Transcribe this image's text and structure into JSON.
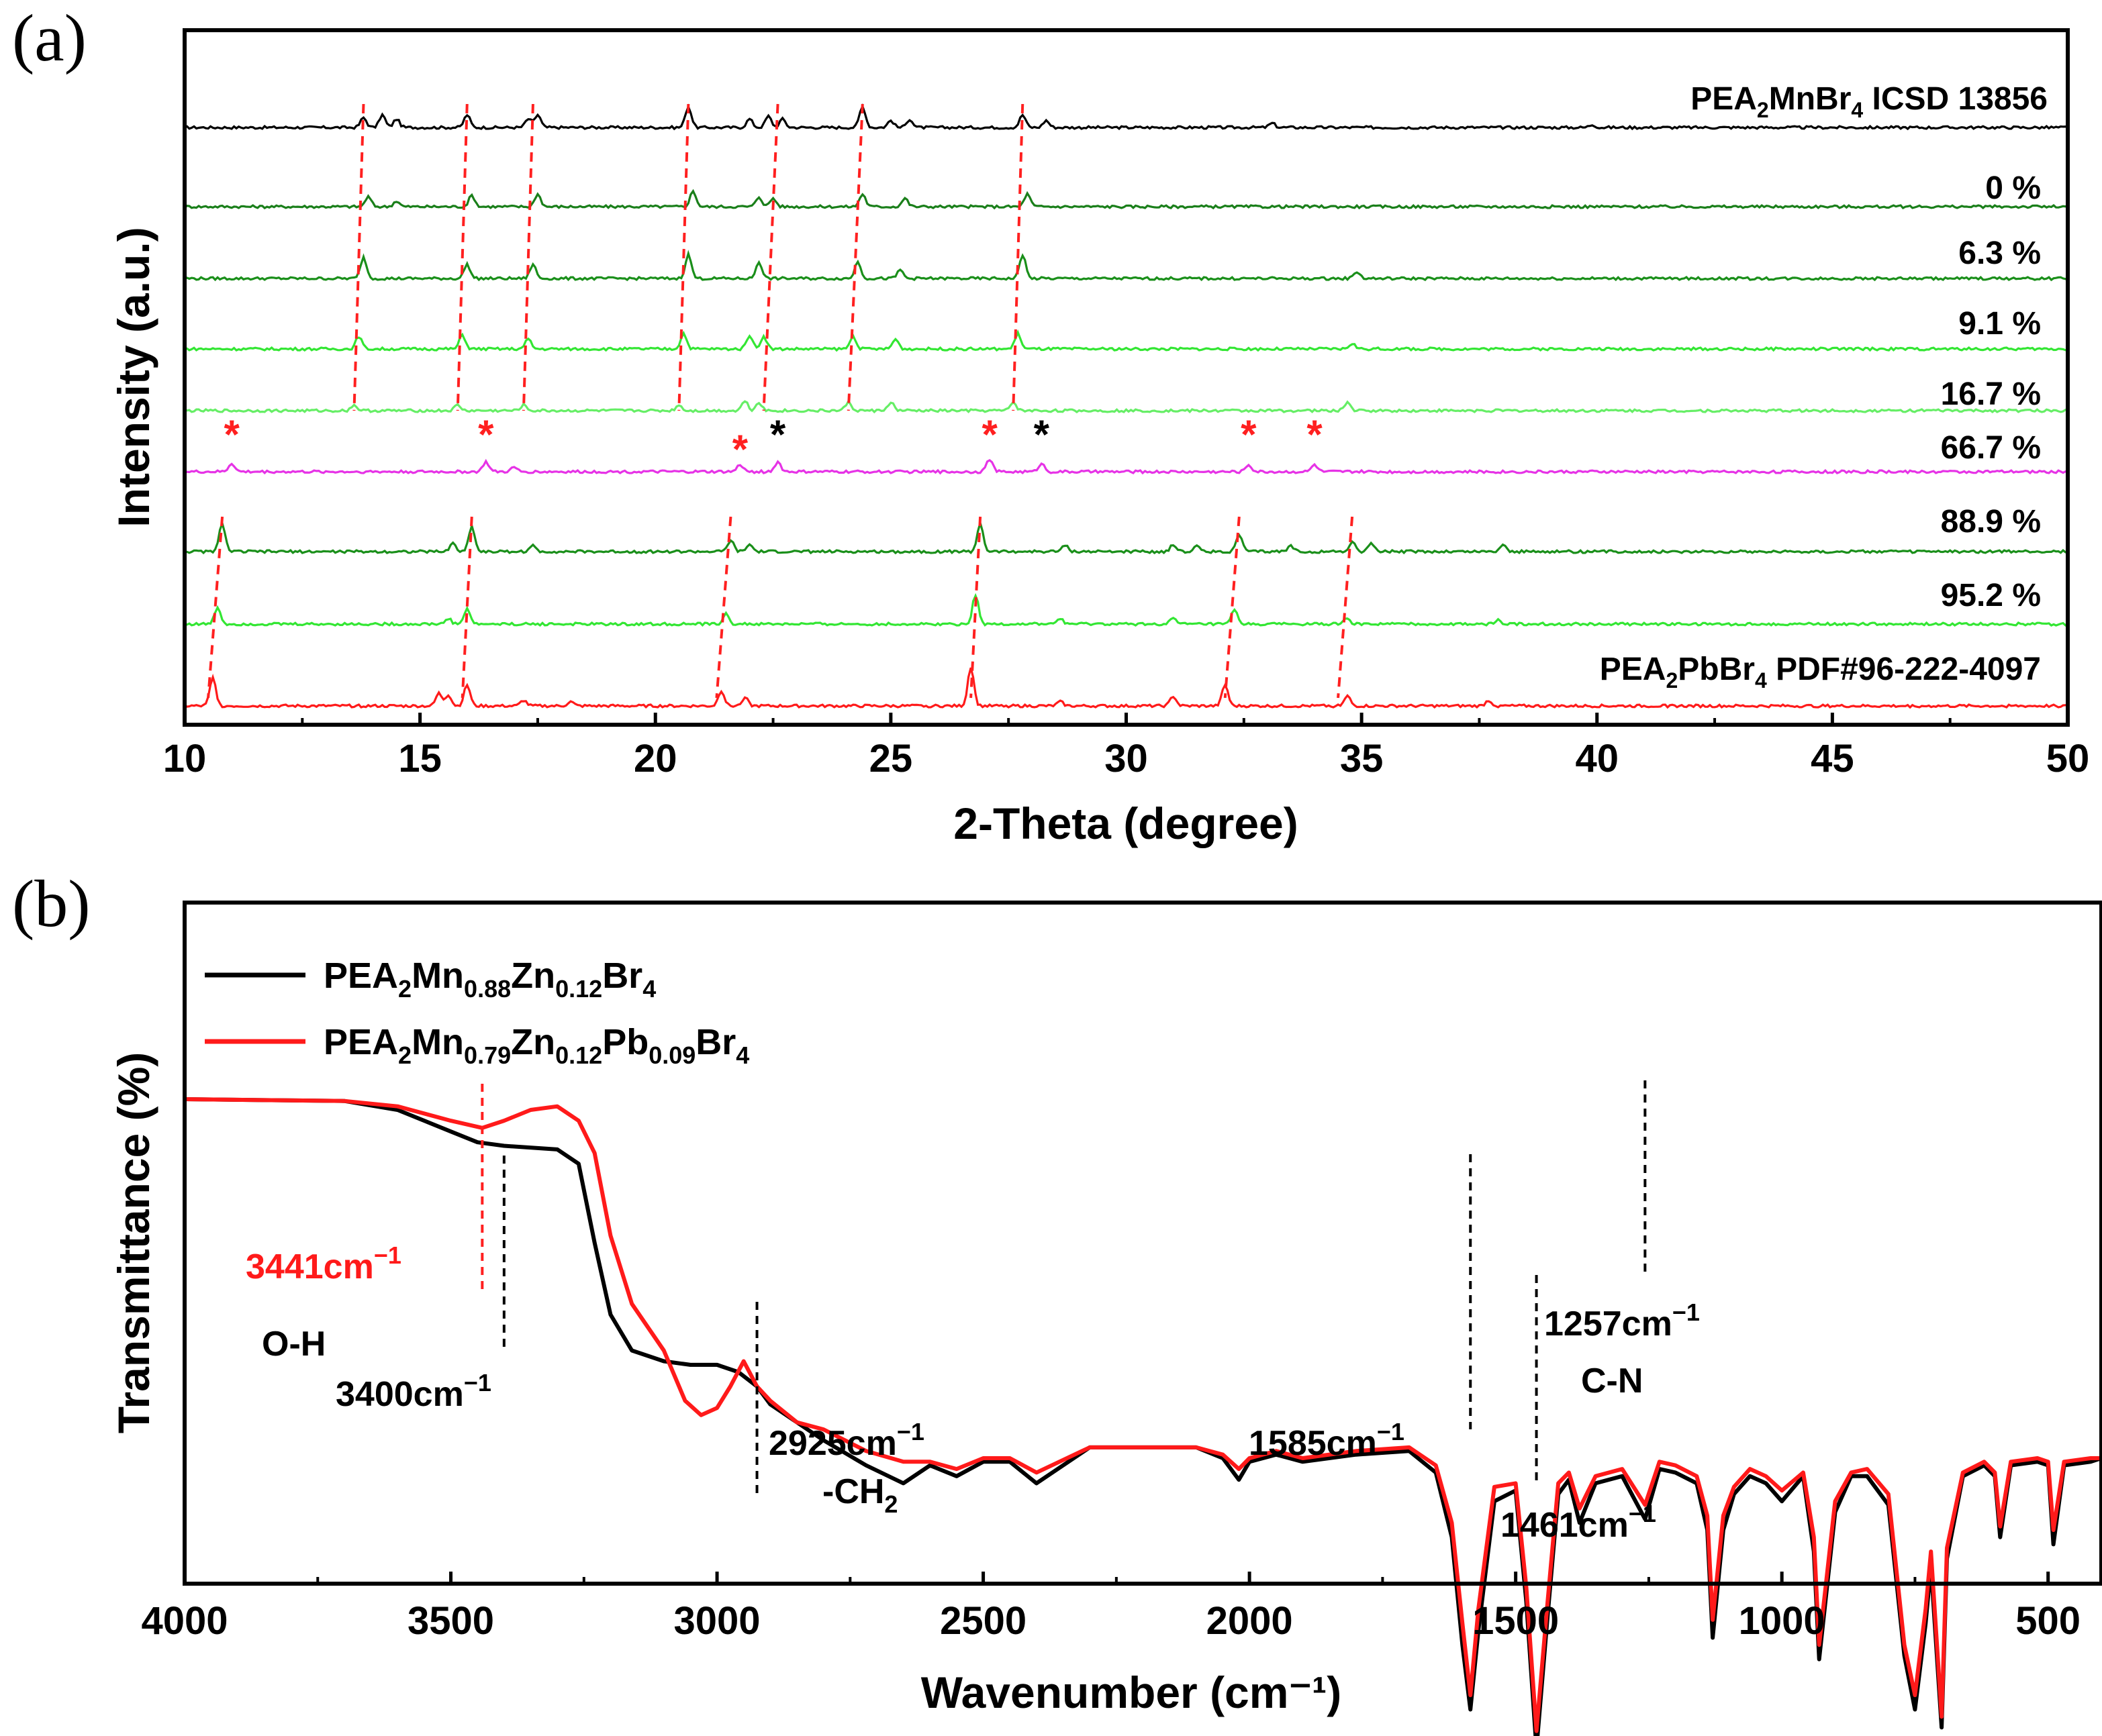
{
  "panels": {
    "a": {
      "label": "(a)"
    },
    "b": {
      "label": "(b)"
    }
  },
  "chart_data": [
    {
      "type": "line",
      "subtype": "xrd-stacked",
      "title": "",
      "xlabel": "2-Theta (degree)",
      "ylabel": "Intensity (a.u.)",
      "xlim": [
        10,
        50
      ],
      "xticks": [
        "10",
        "15",
        "20",
        "25",
        "30",
        "35",
        "40",
        "45",
        "50"
      ],
      "series": [
        {
          "name": "PEA2MnBr4 ICSD 13856",
          "label_main": "PEA",
          "label_sub1": "2",
          "label_mid": "MnBr",
          "label_sub2": "4",
          "label_tail": " ICSD 13856",
          "color": "#000000",
          "peaks": [
            [
              13.8,
              0.35
            ],
            [
              14.2,
              0.45
            ],
            [
              14.5,
              0.3
            ],
            [
              16.0,
              0.45
            ],
            [
              17.3,
              0.3
            ],
            [
              17.5,
              0.45
            ],
            [
              20.7,
              0.75
            ],
            [
              22.0,
              0.3
            ],
            [
              22.4,
              0.4
            ],
            [
              22.7,
              0.3
            ],
            [
              24.4,
              0.75
            ],
            [
              25.0,
              0.25
            ],
            [
              25.4,
              0.3
            ],
            [
              27.8,
              0.45
            ],
            [
              28.3,
              0.25
            ],
            [
              33.1,
              0.15
            ],
            [
              39.9,
              0.1
            ]
          ]
        },
        {
          "name": "0 %",
          "color": "#1a7f1a",
          "peaks": [
            [
              13.9,
              0.35
            ],
            [
              14.5,
              0.2
            ],
            [
              16.1,
              0.4
            ],
            [
              17.5,
              0.45
            ],
            [
              20.8,
              0.55
            ],
            [
              22.2,
              0.35
            ],
            [
              22.5,
              0.3
            ],
            [
              24.4,
              0.45
            ],
            [
              25.3,
              0.3
            ],
            [
              27.9,
              0.45
            ]
          ]
        },
        {
          "name": "6.3 %",
          "color": "#1a8f1a",
          "peaks": [
            [
              13.8,
              0.75
            ],
            [
              16.0,
              0.5
            ],
            [
              17.4,
              0.5
            ],
            [
              20.7,
              0.85
            ],
            [
              22.2,
              0.6
            ],
            [
              24.3,
              0.6
            ],
            [
              25.2,
              0.3
            ],
            [
              27.8,
              0.85
            ],
            [
              34.9,
              0.25
            ]
          ]
        },
        {
          "name": "9.1 %",
          "color": "#33e633",
          "peaks": [
            [
              13.7,
              0.45
            ],
            [
              15.9,
              0.5
            ],
            [
              17.3,
              0.35
            ],
            [
              20.6,
              0.55
            ],
            [
              22.0,
              0.5
            ],
            [
              22.3,
              0.45
            ],
            [
              24.2,
              0.45
            ],
            [
              25.1,
              0.35
            ],
            [
              27.7,
              0.55
            ],
            [
              34.8,
              0.2
            ]
          ]
        },
        {
          "name": "16.7 %",
          "color": "#66ee66",
          "peaks": [
            [
              13.6,
              0.2
            ],
            [
              15.8,
              0.2
            ],
            [
              17.2,
              0.2
            ],
            [
              20.5,
              0.2
            ],
            [
              21.9,
              0.35
            ],
            [
              22.2,
              0.3
            ],
            [
              24.1,
              0.3
            ],
            [
              25.0,
              0.3
            ],
            [
              27.6,
              0.3
            ],
            [
              34.7,
              0.3
            ]
          ]
        },
        {
          "name": "66.7 %",
          "color": "#e633e6",
          "peaks": [
            [
              11.0,
              0.3
            ],
            [
              16.4,
              0.35
            ],
            [
              17.0,
              0.15
            ],
            [
              21.8,
              0.25
            ],
            [
              22.6,
              0.35
            ],
            [
              27.1,
              0.45
            ],
            [
              28.2,
              0.3
            ],
            [
              32.6,
              0.25
            ],
            [
              34.0,
              0.25
            ]
          ]
        },
        {
          "name": "88.9 %",
          "color": "#1a8f1a",
          "peaks": [
            [
              10.8,
              1.0
            ],
            [
              15.7,
              0.3
            ],
            [
              16.1,
              0.9
            ],
            [
              17.4,
              0.2
            ],
            [
              21.6,
              0.4
            ],
            [
              22.0,
              0.25
            ],
            [
              26.9,
              1.0
            ],
            [
              28.7,
              0.25
            ],
            [
              31.0,
              0.25
            ],
            [
              31.5,
              0.2
            ],
            [
              32.4,
              0.6
            ],
            [
              33.5,
              0.2
            ],
            [
              34.8,
              0.35
            ],
            [
              35.2,
              0.3
            ],
            [
              38.0,
              0.25
            ]
          ]
        },
        {
          "name": "95.2 %",
          "color": "#33e633",
          "peaks": [
            [
              10.7,
              0.6
            ],
            [
              15.6,
              0.2
            ],
            [
              16.0,
              0.55
            ],
            [
              21.5,
              0.35
            ],
            [
              26.8,
              1.05
            ],
            [
              28.6,
              0.2
            ],
            [
              31.0,
              0.2
            ],
            [
              32.3,
              0.5
            ],
            [
              34.7,
              0.2
            ],
            [
              37.9,
              0.15
            ]
          ]
        },
        {
          "name": "PEA2PbBr4 PDF#96-222-4097",
          "label_main": "PEA",
          "label_sub1": "2",
          "label_mid": "PbBr",
          "label_sub2": "4",
          "label_tail": " PDF#96-222-4097",
          "color": "#ff1a1a",
          "peaks": [
            [
              10.6,
              1.0
            ],
            [
              15.4,
              0.45
            ],
            [
              15.6,
              0.4
            ],
            [
              16.0,
              0.75
            ],
            [
              17.2,
              0.2
            ],
            [
              18.2,
              0.15
            ],
            [
              21.4,
              0.55
            ],
            [
              21.9,
              0.3
            ],
            [
              26.7,
              1.4
            ],
            [
              28.6,
              0.15
            ],
            [
              31.0,
              0.35
            ],
            [
              32.1,
              0.75
            ],
            [
              34.7,
              0.35
            ],
            [
              37.7,
              0.2
            ]
          ]
        }
      ],
      "markers": [
        {
          "x": 11.0,
          "row": "66.7 %",
          "color": "#ff2020",
          "symbol": "*"
        },
        {
          "x": 16.4,
          "row": "66.7 %",
          "color": "#ff2020",
          "symbol": "*"
        },
        {
          "x": 21.8,
          "row": "66.7 %",
          "color": "#ff2020",
          "symbol": "*"
        },
        {
          "x": 22.6,
          "row": "66.7 %",
          "color": "#000000",
          "symbol": "*"
        },
        {
          "x": 27.1,
          "row": "66.7 %",
          "color": "#ff2020",
          "symbol": "*"
        },
        {
          "x": 28.2,
          "row": "66.7 %",
          "color": "#000000",
          "symbol": "*"
        },
        {
          "x": 32.6,
          "row": "66.7 %",
          "color": "#ff2020",
          "symbol": "*"
        },
        {
          "x": 34.0,
          "row": "66.7 %",
          "color": "#ff2020",
          "symbol": "*"
        }
      ],
      "guide_lines_top": [
        [
          13.8,
          13.6
        ],
        [
          16.0,
          15.8
        ],
        [
          17.4,
          17.2
        ],
        [
          20.7,
          20.5
        ],
        [
          22.6,
          22.3
        ],
        [
          24.4,
          24.1
        ],
        [
          27.8,
          27.6
        ]
      ],
      "guide_lines_bottom": [
        [
          10.8,
          10.5
        ],
        [
          16.1,
          15.9
        ],
        [
          21.6,
          21.3
        ],
        [
          26.9,
          26.7
        ],
        [
          32.4,
          32.1
        ],
        [
          34.8,
          34.5
        ]
      ]
    },
    {
      "type": "line",
      "subtype": "ftir",
      "title": "",
      "xlabel": "Wavenumber (cm⁻¹)",
      "ylabel": "Transmittance (%)",
      "xlim": [
        4000,
        400
      ],
      "xticks": [
        "4000",
        "3500",
        "3000",
        "2500",
        "2000",
        "1500",
        "1000",
        "500"
      ],
      "legend": [
        {
          "name": "PEA2Mn0.88Zn0.12Br4",
          "color": "#000000",
          "t1": "PEA",
          "s1": "2",
          "t2": "Mn",
          "s2": "0.88",
          "t3": "Zn",
          "s3": "0.12",
          "t4": "Br",
          "s4": "4"
        },
        {
          "name": "PEA2Mn0.79Zn0.12Pb0.09Br4",
          "color": "#ff1a1a",
          "t1": "PEA",
          "s1": "2",
          "t2": "Mn",
          "s2": "0.79",
          "t3": "Zn",
          "s3": "0.12",
          "t4": "Pb",
          "s4": "0.09",
          "t5": "Br",
          "s5": "4"
        }
      ],
      "series": [
        {
          "name": "PEA2Mn0.88Zn0.12Br4",
          "color": "#000000",
          "x": [
            4000,
            3700,
            3600,
            3500,
            3450,
            3400,
            3300,
            3260,
            3230,
            3200,
            3160,
            3100,
            3050,
            3000,
            2960,
            2925,
            2900,
            2850,
            2800,
            2720,
            2650,
            2600,
            2550,
            2500,
            2450,
            2400,
            2300,
            2100,
            2050,
            2020,
            2000,
            1950,
            1900,
            1800,
            1700,
            1650,
            1620,
            1600,
            1585,
            1570,
            1540,
            1500,
            1480,
            1461,
            1440,
            1420,
            1400,
            1380,
            1350,
            1300,
            1257,
            1230,
            1200,
            1160,
            1140,
            1130,
            1110,
            1090,
            1060,
            1030,
            1000,
            960,
            940,
            930,
            900,
            870,
            840,
            800,
            770,
            750,
            730,
            720,
            700,
            690,
            660,
            620,
            600,
            590,
            570,
            520,
            500,
            490,
            470,
            420,
            400
          ],
          "y": [
            100,
            99.5,
            97,
            91,
            88,
            87,
            86,
            82,
            60,
            40,
            30,
            27,
            26,
            26,
            24,
            20,
            15,
            10,
            5,
            -2,
            -7,
            -2,
            -5,
            -1,
            -1,
            -7,
            3,
            3,
            0,
            -6,
            -1,
            1,
            -1,
            1,
            2,
            -4,
            -22,
            -52,
            -70,
            -48,
            -12,
            -9,
            -40,
            -81,
            -44,
            -10,
            -6,
            -18,
            -7,
            -5,
            -17,
            -3,
            -4,
            -7,
            -20,
            -50,
            -20,
            -10,
            -5,
            -7,
            -12,
            -5,
            -26,
            -56,
            -15,
            -5,
            -5,
            -13,
            -55,
            -70,
            -46,
            -30,
            -75,
            -28,
            -5,
            -2,
            -5,
            -22,
            -2,
            -1,
            -2,
            -24,
            -2,
            -1,
            0
          ]
        },
        {
          "name": "PEA2Mn0.79Zn0.12Pb0.09Br4",
          "color": "#ff1a1a",
          "x": [
            4000,
            3700,
            3600,
            3500,
            3441,
            3400,
            3350,
            3300,
            3260,
            3230,
            3200,
            3160,
            3100,
            3060,
            3030,
            3000,
            2975,
            2950,
            2925,
            2900,
            2850,
            2800,
            2720,
            2650,
            2600,
            2550,
            2500,
            2450,
            2400,
            2300,
            2100,
            2050,
            2020,
            2000,
            1950,
            1900,
            1800,
            1700,
            1650,
            1620,
            1600,
            1585,
            1570,
            1540,
            1500,
            1480,
            1461,
            1440,
            1420,
            1400,
            1380,
            1350,
            1300,
            1257,
            1230,
            1200,
            1160,
            1140,
            1130,
            1110,
            1090,
            1060,
            1030,
            1000,
            960,
            940,
            930,
            900,
            870,
            840,
            800,
            770,
            750,
            730,
            720,
            700,
            690,
            660,
            620,
            600,
            590,
            570,
            520,
            500,
            490,
            470,
            420,
            400
          ],
          "y": [
            100,
            99.5,
            98,
            94,
            92,
            94,
            97,
            98,
            94,
            85,
            62,
            43,
            30,
            16,
            12,
            14,
            20,
            27,
            20,
            16,
            10,
            8,
            2,
            -1,
            -1,
            -3,
            0,
            0,
            -4,
            3,
            3,
            1,
            -3,
            0,
            2,
            0,
            2,
            3,
            -2,
            -18,
            -46,
            -66,
            -42,
            -8,
            -7,
            -36,
            -76,
            -40,
            -7,
            -4,
            -14,
            -5,
            -3,
            -13,
            -1,
            -2,
            -5,
            -16,
            -45,
            -16,
            -8,
            -3,
            -5,
            -9,
            -4,
            -22,
            -52,
            -12,
            -4,
            -3,
            -10,
            -52,
            -66,
            -42,
            -26,
            -72,
            -25,
            -4,
            -1,
            -4,
            -19,
            -1,
            0,
            -1,
            -20,
            -1,
            0,
            0
          ]
        }
      ],
      "annotations": [
        {
          "text": "3441cm",
          "sup": "−1",
          "color": "#ff1a1a",
          "line_x": 3441
        },
        {
          "text": "O-H",
          "color": "#000000"
        },
        {
          "text": "3400cm",
          "sup": "−1",
          "color": "#000000",
          "line_x": 3400
        },
        {
          "text": "2925cm",
          "sup": "−1",
          "color": "#000000",
          "line_x": 2925
        },
        {
          "text": "-CH",
          "sub": "2",
          "color": "#000000"
        },
        {
          "text": "1585cm",
          "sup": "−1",
          "color": "#000000",
          "line_x": 1585
        },
        {
          "text": "1461cm",
          "sup": "−1",
          "color": "#000000",
          "line_x": 1461
        },
        {
          "text": "1257cm",
          "sup": "−1",
          "color": "#000000",
          "line_x": 1257
        },
        {
          "text": "C-N",
          "color": "#000000"
        }
      ]
    }
  ]
}
